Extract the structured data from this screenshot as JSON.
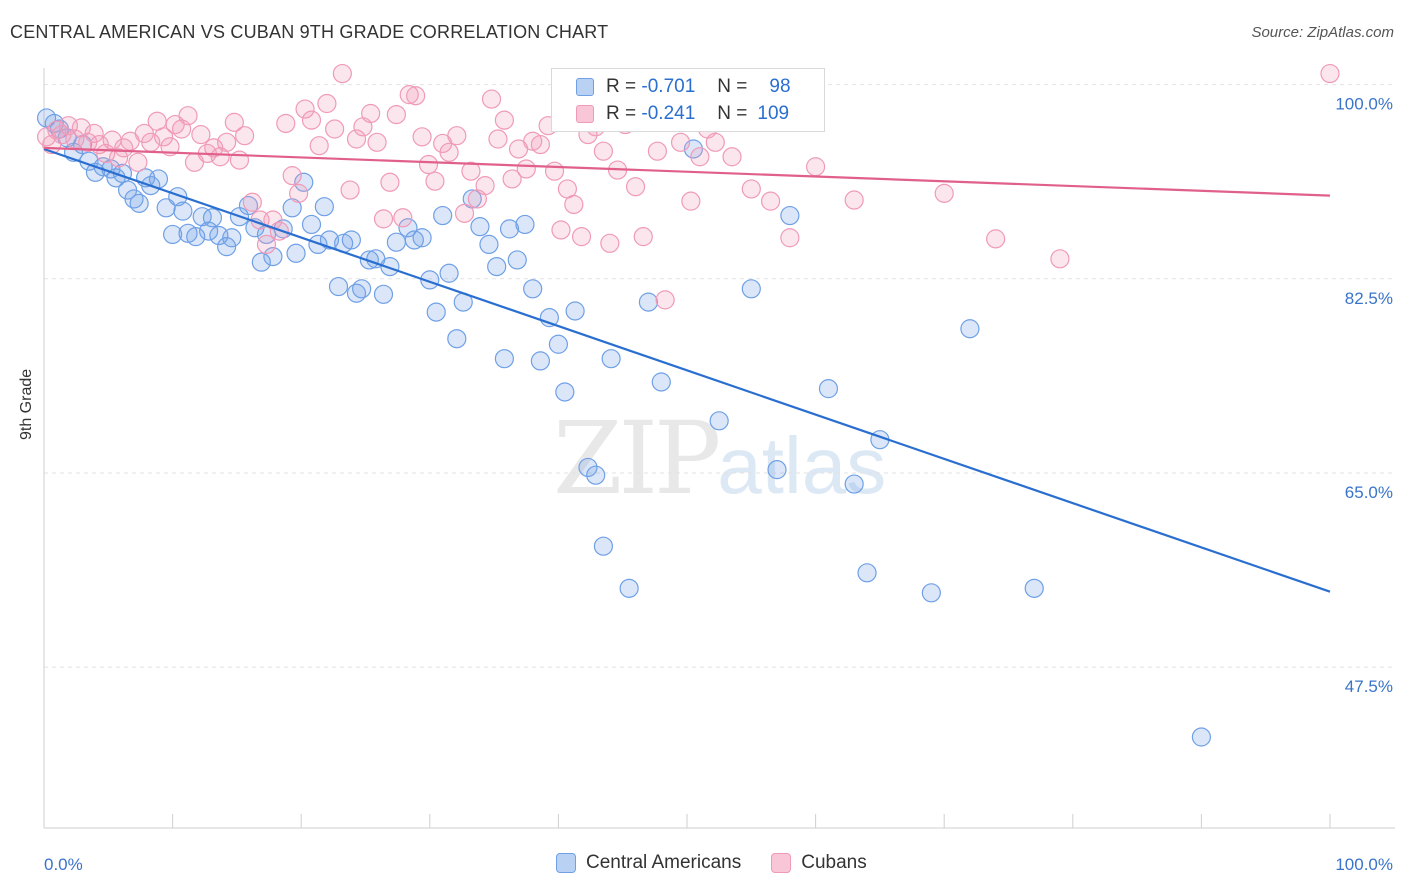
{
  "chart_data": {
    "type": "scatter",
    "title": "CENTRAL AMERICAN VS CUBAN 9TH GRADE CORRELATION CHART",
    "source": "Source: ZipAtlas.com",
    "xlabel": "",
    "ylabel": "9th Grade",
    "xlim": [
      0,
      100
    ],
    "ylim": [
      33,
      101.5
    ],
    "x_tick_labels": [
      "0.0%",
      "100.0%"
    ],
    "y_ticks": [
      100.0,
      82.5,
      65.0,
      47.5
    ],
    "y_tick_labels": [
      "100.0%",
      "82.5%",
      "65.0%",
      "47.5%"
    ],
    "grid": true,
    "legend_position": "top-center",
    "watermark": {
      "zip": "ZIP",
      "atlas": "atlas"
    },
    "series": [
      {
        "name": "Central Americans",
        "color": "#6fa0e6",
        "line_color": "#2a6fd0",
        "r_label": "R =",
        "r_value": "-0.701",
        "n_label": "N =",
        "n_value": "98",
        "trend": [
          [
            0,
            94.2
          ],
          [
            100,
            54.3
          ]
        ],
        "points": [
          [
            0.2,
            97.0
          ],
          [
            0.8,
            96.5
          ],
          [
            1.2,
            96.0
          ],
          [
            1.8,
            95.2
          ],
          [
            2.3,
            93.9
          ],
          [
            3.0,
            94.6
          ],
          [
            3.5,
            93.1
          ],
          [
            4.0,
            92.1
          ],
          [
            4.6,
            92.6
          ],
          [
            5.2,
            92.4
          ],
          [
            5.6,
            91.6
          ],
          [
            6.1,
            92.0
          ],
          [
            6.5,
            90.5
          ],
          [
            7.0,
            89.7
          ],
          [
            7.4,
            89.3
          ],
          [
            7.9,
            91.6
          ],
          [
            8.3,
            90.9
          ],
          [
            8.9,
            91.5
          ],
          [
            9.5,
            88.9
          ],
          [
            10.0,
            86.5
          ],
          [
            10.4,
            89.9
          ],
          [
            10.8,
            88.6
          ],
          [
            11.2,
            86.6
          ],
          [
            11.8,
            86.3
          ],
          [
            12.3,
            88.1
          ],
          [
            12.8,
            86.8
          ],
          [
            13.1,
            88.0
          ],
          [
            13.6,
            86.4
          ],
          [
            14.2,
            85.4
          ],
          [
            14.6,
            86.2
          ],
          [
            15.2,
            88.1
          ],
          [
            15.9,
            89.1
          ],
          [
            16.4,
            87.1
          ],
          [
            16.9,
            84.0
          ],
          [
            17.3,
            86.5
          ],
          [
            17.8,
            84.5
          ],
          [
            18.6,
            87.0
          ],
          [
            19.3,
            88.9
          ],
          [
            19.6,
            84.8
          ],
          [
            20.2,
            91.2
          ],
          [
            20.8,
            87.4
          ],
          [
            21.3,
            85.6
          ],
          [
            21.8,
            89.0
          ],
          [
            22.2,
            86.0
          ],
          [
            22.9,
            81.8
          ],
          [
            23.3,
            85.7
          ],
          [
            23.9,
            86.0
          ],
          [
            24.3,
            81.2
          ],
          [
            24.7,
            81.6
          ],
          [
            25.3,
            84.2
          ],
          [
            25.8,
            84.3
          ],
          [
            26.4,
            81.1
          ],
          [
            26.9,
            83.6
          ],
          [
            27.4,
            85.8
          ],
          [
            28.3,
            87.1
          ],
          [
            28.8,
            86.0
          ],
          [
            29.4,
            86.2
          ],
          [
            30.0,
            82.4
          ],
          [
            30.5,
            79.5
          ],
          [
            31.0,
            88.2
          ],
          [
            31.5,
            83.0
          ],
          [
            32.1,
            77.1
          ],
          [
            32.6,
            80.4
          ],
          [
            33.3,
            89.7
          ],
          [
            33.9,
            87.2
          ],
          [
            34.6,
            85.6
          ],
          [
            35.2,
            83.6
          ],
          [
            35.8,
            75.3
          ],
          [
            36.2,
            87.0
          ],
          [
            36.8,
            84.2
          ],
          [
            37.4,
            87.4
          ],
          [
            38.0,
            81.6
          ],
          [
            38.6,
            75.1
          ],
          [
            39.3,
            79.0
          ],
          [
            40.0,
            76.6
          ],
          [
            40.5,
            72.3
          ],
          [
            41.3,
            79.6
          ],
          [
            41.8,
            96.6
          ],
          [
            42.3,
            65.5
          ],
          [
            42.9,
            64.8
          ],
          [
            43.5,
            58.4
          ],
          [
            44.1,
            75.3
          ],
          [
            45.5,
            54.6
          ],
          [
            47.0,
            80.4
          ],
          [
            48.0,
            73.2
          ],
          [
            50.5,
            94.2
          ],
          [
            52.5,
            69.7
          ],
          [
            55.0,
            81.6
          ],
          [
            57.0,
            65.3
          ],
          [
            58.0,
            88.2
          ],
          [
            61.0,
            72.6
          ],
          [
            63.0,
            64.0
          ],
          [
            64.0,
            56.0
          ],
          [
            65.0,
            68.0
          ],
          [
            69.0,
            54.2
          ],
          [
            72.0,
            78.0
          ],
          [
            77.0,
            54.6
          ],
          [
            90.0,
            41.2
          ]
        ]
      },
      {
        "name": "Cubans",
        "color": "#f09ab8",
        "line_color": "#e0608a",
        "r_label": "R =",
        "r_value": "-0.241",
        "n_label": "N =",
        "n_value": "109",
        "trend": [
          [
            0,
            94.3
          ],
          [
            100,
            90.0
          ]
        ],
        "points": [
          [
            0.2,
            95.3
          ],
          [
            0.6,
            94.6
          ],
          [
            1.0,
            95.9
          ],
          [
            1.4,
            95.5
          ],
          [
            1.9,
            96.3
          ],
          [
            2.4,
            95.1
          ],
          [
            2.9,
            96.1
          ],
          [
            3.4,
            94.8
          ],
          [
            3.9,
            95.6
          ],
          [
            4.3,
            94.6
          ],
          [
            4.8,
            93.8
          ],
          [
            5.3,
            95.0
          ],
          [
            5.8,
            93.4
          ],
          [
            6.2,
            94.3
          ],
          [
            6.7,
            94.9
          ],
          [
            7.3,
            93.0
          ],
          [
            7.8,
            95.6
          ],
          [
            8.3,
            94.8
          ],
          [
            8.8,
            96.7
          ],
          [
            9.3,
            95.3
          ],
          [
            9.8,
            94.4
          ],
          [
            10.2,
            96.4
          ],
          [
            10.7,
            96.0
          ],
          [
            11.2,
            97.2
          ],
          [
            11.7,
            93.0
          ],
          [
            12.2,
            95.5
          ],
          [
            12.7,
            93.8
          ],
          [
            13.2,
            94.3
          ],
          [
            13.7,
            93.5
          ],
          [
            14.2,
            94.8
          ],
          [
            14.8,
            96.6
          ],
          [
            15.2,
            93.2
          ],
          [
            15.6,
            95.4
          ],
          [
            16.2,
            89.4
          ],
          [
            16.8,
            87.8
          ],
          [
            17.3,
            85.6
          ],
          [
            17.8,
            87.8
          ],
          [
            18.3,
            86.8
          ],
          [
            18.8,
            96.5
          ],
          [
            19.3,
            91.8
          ],
          [
            19.8,
            90.2
          ],
          [
            20.3,
            97.8
          ],
          [
            20.8,
            96.8
          ],
          [
            21.4,
            94.5
          ],
          [
            22.0,
            98.3
          ],
          [
            22.6,
            96.0
          ],
          [
            23.2,
            101.0
          ],
          [
            23.8,
            90.5
          ],
          [
            24.3,
            95.1
          ],
          [
            24.8,
            96.2
          ],
          [
            25.4,
            97.4
          ],
          [
            25.9,
            94.8
          ],
          [
            26.4,
            87.9
          ],
          [
            26.9,
            91.2
          ],
          [
            27.4,
            97.3
          ],
          [
            27.9,
            88.0
          ],
          [
            28.4,
            99.1
          ],
          [
            28.9,
            99.0
          ],
          [
            29.4,
            95.3
          ],
          [
            29.9,
            92.8
          ],
          [
            30.4,
            91.3
          ],
          [
            31.0,
            94.7
          ],
          [
            31.5,
            93.9
          ],
          [
            32.1,
            95.4
          ],
          [
            32.7,
            88.4
          ],
          [
            33.2,
            92.2
          ],
          [
            33.7,
            89.7
          ],
          [
            34.3,
            90.9
          ],
          [
            34.8,
            98.7
          ],
          [
            35.3,
            95.1
          ],
          [
            35.8,
            96.8
          ],
          [
            36.4,
            91.5
          ],
          [
            36.9,
            94.2
          ],
          [
            37.5,
            92.4
          ],
          [
            38.0,
            94.9
          ],
          [
            38.6,
            94.6
          ],
          [
            39.2,
            96.3
          ],
          [
            39.7,
            92.2
          ],
          [
            40.2,
            86.9
          ],
          [
            40.7,
            90.6
          ],
          [
            41.2,
            89.2
          ],
          [
            41.8,
            86.3
          ],
          [
            42.3,
            95.5
          ],
          [
            42.9,
            96.2
          ],
          [
            43.5,
            94.0
          ],
          [
            44.0,
            85.7
          ],
          [
            44.6,
            92.3
          ],
          [
            45.2,
            96.4
          ],
          [
            46.0,
            90.8
          ],
          [
            46.6,
            86.3
          ],
          [
            47.2,
            96.8
          ],
          [
            47.7,
            94.0
          ],
          [
            48.3,
            80.6
          ],
          [
            48.8,
            97.0
          ],
          [
            49.5,
            94.8
          ],
          [
            50.3,
            89.5
          ],
          [
            51.0,
            93.5
          ],
          [
            51.6,
            96.0
          ],
          [
            52.2,
            94.8
          ],
          [
            53.5,
            93.5
          ],
          [
            55.0,
            90.6
          ],
          [
            56.5,
            89.5
          ],
          [
            58.0,
            86.2
          ],
          [
            60.0,
            92.6
          ],
          [
            63.0,
            89.6
          ],
          [
            70.0,
            90.2
          ],
          [
            74.0,
            86.1
          ],
          [
            79.0,
            84.3
          ],
          [
            100.0,
            101.0
          ]
        ]
      }
    ]
  }
}
